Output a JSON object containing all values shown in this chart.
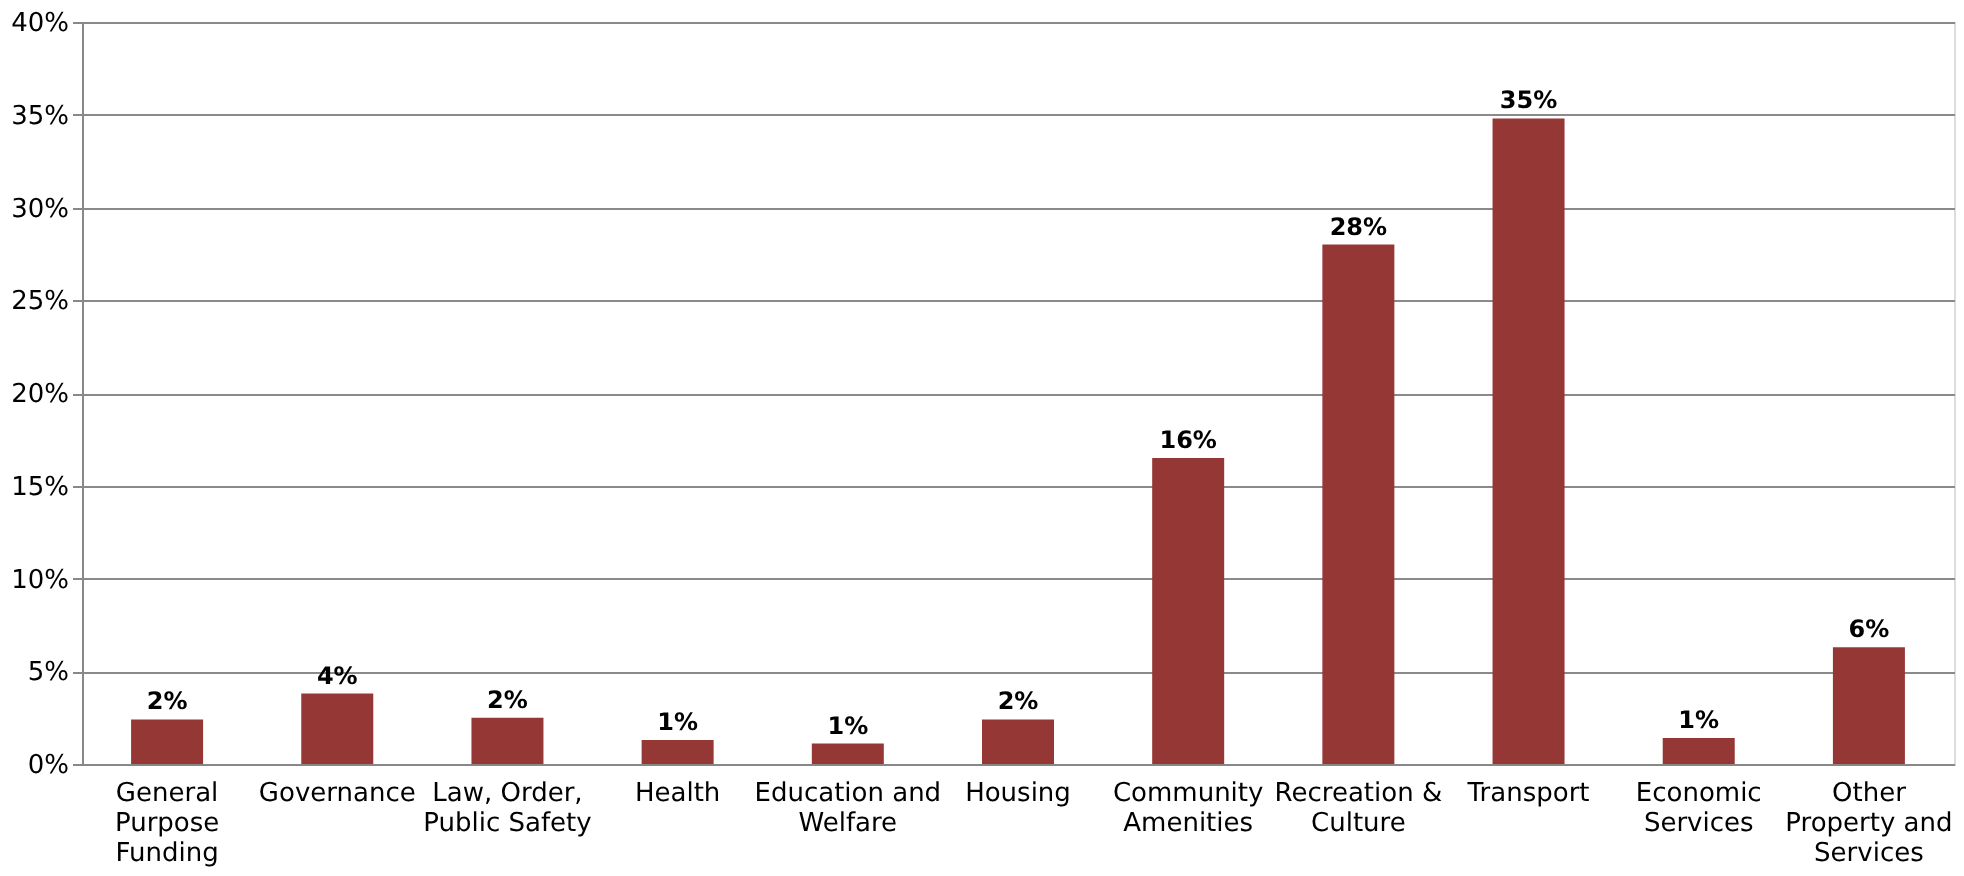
{
  "chart_data": {
    "type": "bar",
    "categories": [
      "General Purpose Funding",
      "Governance",
      "Law, Order, Public Safety",
      "Health",
      "Education and Welfare",
      "Housing",
      "Community Amenities",
      "Recreation & Culture",
      "Transport",
      "Economic Services",
      "Other Property and Services"
    ],
    "values": [
      2.4,
      3.8,
      2.5,
      1.3,
      1.1,
      2.4,
      16.5,
      28,
      34.8,
      1.4,
      6.3
    ],
    "value_labels": [
      "2%",
      "4%",
      "2%",
      "1%",
      "1%",
      "2%",
      "16%",
      "28%",
      "35%",
      "1%",
      "6%"
    ],
    "color": "#953735",
    "ylim": [
      0,
      40
    ],
    "yticks": [
      {
        "value": 0,
        "label": "0%"
      },
      {
        "value": 5,
        "label": "5%"
      },
      {
        "value": 10,
        "label": "10%"
      },
      {
        "value": 15,
        "label": "15%"
      },
      {
        "value": 20,
        "label": "20%"
      },
      {
        "value": 25,
        "label": "25%"
      },
      {
        "value": 30,
        "label": "30%"
      },
      {
        "value": 35,
        "label": "35%"
      },
      {
        "value": 40,
        "label": "40%"
      }
    ],
    "grid": "y"
  }
}
